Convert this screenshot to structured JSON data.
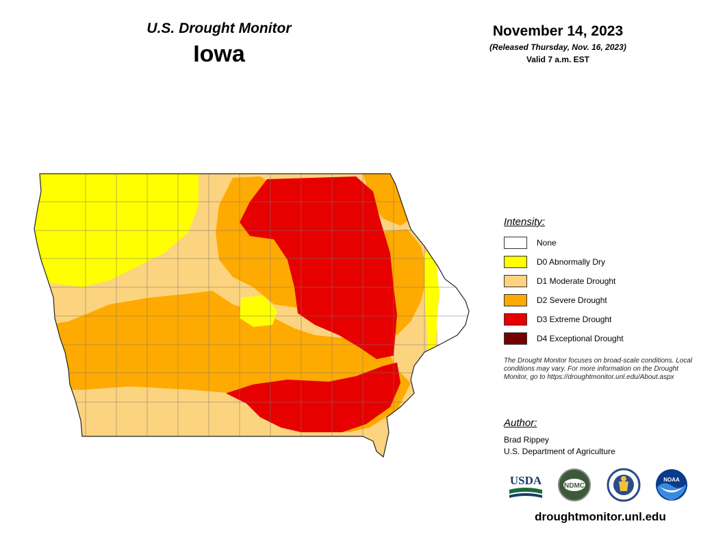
{
  "header": {
    "product_title": "U.S. Drought Monitor",
    "state_name": "Iowa",
    "map_date": "November 14, 2023",
    "release_note": "(Released Thursday, Nov. 16, 2023)",
    "valid_time": "Valid 7 a.m. EST"
  },
  "legend": {
    "heading": "Intensity:",
    "items": [
      {
        "label": "None",
        "color": "#ffffff"
      },
      {
        "label": "D0 Abnormally Dry",
        "color": "#ffff00"
      },
      {
        "label": "D1 Moderate Drought",
        "color": "#fcd37f"
      },
      {
        "label": "D2 Severe Drought",
        "color": "#ffaa00"
      },
      {
        "label": "D3 Extreme Drought",
        "color": "#e60000"
      },
      {
        "label": "D4 Exceptional Drought",
        "color": "#730000"
      }
    ]
  },
  "disclaimer": "The Drought Monitor focuses on broad-scale conditions. Local conditions may vary. For more information on the Drought Monitor, go to https://droughtmonitor.unl.edu/About.aspx",
  "author": {
    "heading": "Author:",
    "name": "Brad Rippey",
    "organization": "U.S. Department of Agriculture"
  },
  "logos": {
    "usda": "USDA",
    "ndmc": "NDMC",
    "noaa": "NOAA"
  },
  "website": "droughtmonitor.unl.edu"
}
